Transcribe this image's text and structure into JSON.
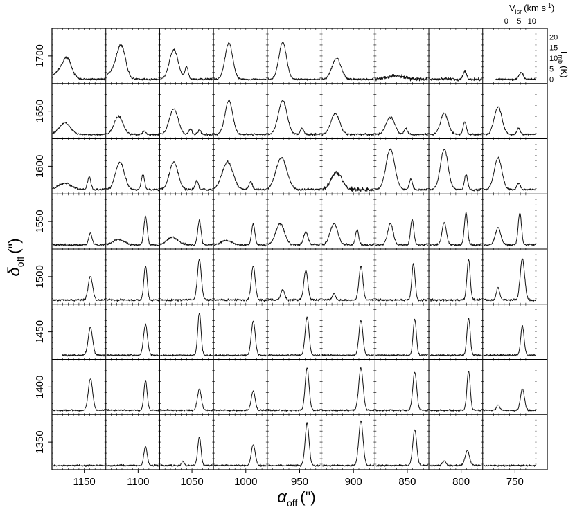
{
  "chart_data": {
    "type": "line",
    "layout": "spectral-map-grid",
    "xlabel": {
      "symbol": "α",
      "subscript": "off",
      "unit": "(\")"
    },
    "ylabel": {
      "symbol": "δ",
      "subscript": "off",
      "unit": "(\")"
    },
    "xlim": [
      1180,
      720
    ],
    "ylim": [
      1325,
      1725
    ],
    "step": 50,
    "x_ticks": [
      1150,
      1100,
      1050,
      1000,
      950,
      900,
      850,
      800,
      750
    ],
    "y_ticks": [
      1700,
      1650,
      1600,
      1550,
      1500,
      1450,
      1400,
      1350
    ],
    "velocity_axis": {
      "label": "V",
      "subscript": "lsr",
      "unit": "(km s",
      "unit_exp": "-1",
      "unit_close": ")",
      "range": [
        -5,
        16
      ],
      "ticks": [
        0,
        5,
        10
      ]
    },
    "temperature_axis": {
      "label": "T",
      "subscript": "mb",
      "unit": "(K)",
      "range": [
        -2,
        24
      ],
      "ticks": [
        0,
        5,
        10,
        15,
        20
      ]
    },
    "spectra": [
      {
        "delta": 1700,
        "alpha": 1155,
        "lines": [
          [
            1.0,
            8.5,
            4.0
          ],
          [
            -2.0,
            3.5,
            6.0
          ]
        ],
        "noise": 0.5
      },
      {
        "delta": 1700,
        "alpha": 1105,
        "lines": [
          [
            1.0,
            14.5,
            4.0
          ],
          [
            -2.0,
            3.5,
            6.0
          ]
        ],
        "noise": 0.5
      },
      {
        "delta": 1700,
        "alpha": 1055,
        "lines": [
          [
            0.5,
            14.0,
            4.0
          ],
          [
            5.5,
            6.0,
            1.5
          ]
        ],
        "noise": 0.5
      },
      {
        "delta": 1700,
        "alpha": 1005,
        "lines": [
          [
            1.0,
            17.0,
            3.5
          ]
        ],
        "noise": 0.4
      },
      {
        "delta": 1700,
        "alpha": 955,
        "lines": [
          [
            1.0,
            17.5,
            3.5
          ]
        ],
        "noise": 0.4
      },
      {
        "delta": 1700,
        "alpha": 905,
        "lines": [
          [
            1.0,
            10.0,
            4.0
          ]
        ],
        "noise": 0.5
      },
      {
        "delta": 1700,
        "alpha": 855,
        "lines": [
          [
            3.0,
            1.5,
            8.0
          ]
        ],
        "noise": 0.8
      },
      {
        "delta": 1700,
        "alpha": 805,
        "lines": [
          [
            9.0,
            4.0,
            1.5
          ]
        ],
        "noise": 0.7
      },
      {
        "delta": 1700,
        "alpha": 755,
        "lines": [
          [
            10.0,
            3.0,
            2.0
          ]
        ],
        "noise": 0.5,
        "start": 0.0
      },
      {
        "delta": 1650,
        "alpha": 1155,
        "lines": [
          [
            0.0,
            5.5,
            5.0
          ]
        ],
        "noise": 0.4
      },
      {
        "delta": 1650,
        "alpha": 1105,
        "lines": [
          [
            0.0,
            8.5,
            4.0
          ],
          [
            10.0,
            1.5,
            1.5
          ]
        ],
        "noise": 0.5
      },
      {
        "delta": 1650,
        "alpha": 1055,
        "lines": [
          [
            0.5,
            12.0,
            4.0
          ],
          [
            7.0,
            2.5,
            1.5
          ],
          [
            10.5,
            2.0,
            1.5
          ]
        ],
        "noise": 0.5
      },
      {
        "delta": 1650,
        "alpha": 1005,
        "lines": [
          [
            1.0,
            16.0,
            3.5
          ]
        ],
        "noise": 0.4
      },
      {
        "delta": 1650,
        "alpha": 955,
        "lines": [
          [
            1.0,
            16.0,
            4.0
          ],
          [
            8.5,
            3.0,
            1.5
          ]
        ],
        "noise": 0.5
      },
      {
        "delta": 1650,
        "alpha": 905,
        "lines": [
          [
            0.5,
            10.0,
            4.0
          ]
        ],
        "noise": 0.5
      },
      {
        "delta": 1650,
        "alpha": 855,
        "lines": [
          [
            1.0,
            8.0,
            4.0
          ],
          [
            7.0,
            3.0,
            1.5
          ]
        ],
        "noise": 0.5
      },
      {
        "delta": 1650,
        "alpha": 805,
        "lines": [
          [
            1.0,
            10.0,
            3.5
          ],
          [
            9.0,
            6.0,
            1.5
          ]
        ],
        "noise": 0.5
      },
      {
        "delta": 1650,
        "alpha": 755,
        "lines": [
          [
            1.0,
            13.0,
            3.5
          ],
          [
            9.0,
            3.0,
            1.5
          ]
        ],
        "noise": 0.5
      },
      {
        "delta": 1600,
        "alpha": 1155,
        "lines": [
          [
            0.0,
            3.0,
            6.0
          ],
          [
            9.5,
            6.0,
            1.5
          ]
        ],
        "noise": 0.5
      },
      {
        "delta": 1600,
        "alpha": 1105,
        "lines": [
          [
            0.5,
            13.0,
            4.0
          ],
          [
            9.5,
            7.0,
            1.5
          ]
        ],
        "noise": 0.5
      },
      {
        "delta": 1600,
        "alpha": 1055,
        "lines": [
          [
            0.5,
            13.0,
            4.0
          ],
          [
            9.5,
            4.0,
            1.5
          ]
        ],
        "noise": 0.5
      },
      {
        "delta": 1600,
        "alpha": 1005,
        "lines": [
          [
            0.5,
            13.0,
            5.0
          ],
          [
            9.5,
            4.0,
            1.5
          ]
        ],
        "noise": 0.5
      },
      {
        "delta": 1600,
        "alpha": 955,
        "lines": [
          [
            0.5,
            15.0,
            5.0
          ]
        ],
        "noise": 0.5
      },
      {
        "delta": 1600,
        "alpha": 905,
        "lines": [
          [
            1.0,
            8.0,
            5.0
          ]
        ],
        "noise": 1.0
      },
      {
        "delta": 1600,
        "alpha": 855,
        "lines": [
          [
            1.0,
            19.0,
            4.0
          ],
          [
            9.0,
            5.0,
            1.5
          ]
        ],
        "noise": 0.5
      },
      {
        "delta": 1600,
        "alpha": 805,
        "lines": [
          [
            1.0,
            19.0,
            3.5
          ],
          [
            9.5,
            7.0,
            1.5
          ]
        ],
        "noise": 0.5
      },
      {
        "delta": 1600,
        "alpha": 755,
        "lines": [
          [
            1.0,
            15.0,
            3.5
          ],
          [
            9.0,
            3.0,
            1.5
          ]
        ],
        "noise": 0.5
      },
      {
        "delta": 1550,
        "alpha": 1155,
        "lines": [
          [
            10.0,
            5.5,
            1.5
          ]
        ],
        "noise": 0.5
      },
      {
        "delta": 1550,
        "alpha": 1105,
        "lines": [
          [
            0.0,
            2.5,
            5.0
          ],
          [
            10.5,
            13.5,
            1.5
          ]
        ],
        "noise": 0.5
      },
      {
        "delta": 1550,
        "alpha": 1055,
        "lines": [
          [
            0.0,
            3.5,
            5.0
          ],
          [
            10.5,
            11.5,
            1.5
          ]
        ],
        "noise": 0.5
      },
      {
        "delta": 1550,
        "alpha": 1005,
        "lines": [
          [
            0.0,
            2.0,
            5.0
          ],
          [
            10.5,
            10.0,
            1.5
          ]
        ],
        "noise": 0.5
      },
      {
        "delta": 1550,
        "alpha": 955,
        "lines": [
          [
            0.0,
            10.0,
            4.0
          ],
          [
            10.0,
            6.0,
            2.0
          ]
        ],
        "noise": 0.5
      },
      {
        "delta": 1550,
        "alpha": 905,
        "lines": [
          [
            0.0,
            10.0,
            3.5
          ],
          [
            9.0,
            7.0,
            1.5
          ]
        ],
        "noise": 0.5
      },
      {
        "delta": 1550,
        "alpha": 855,
        "lines": [
          [
            1.0,
            10.0,
            2.5
          ],
          [
            9.5,
            12.0,
            1.5
          ]
        ],
        "noise": 0.5
      },
      {
        "delta": 1550,
        "alpha": 805,
        "lines": [
          [
            1.0,
            10.5,
            2.0
          ],
          [
            9.5,
            15.0,
            1.5
          ]
        ],
        "noise": 0.5
      },
      {
        "delta": 1550,
        "alpha": 755,
        "lines": [
          [
            1.0,
            8.0,
            2.5
          ],
          [
            9.5,
            15.0,
            1.5
          ]
        ],
        "noise": 0.5
      },
      {
        "delta": 1500,
        "alpha": 1155,
        "lines": [
          [
            10.0,
            11.0,
            2.0
          ]
        ],
        "noise": 0.5
      },
      {
        "delta": 1500,
        "alpha": 1105,
        "lines": [
          [
            10.5,
            16.0,
            1.5
          ]
        ],
        "noise": 0.5
      },
      {
        "delta": 1500,
        "alpha": 1055,
        "lines": [
          [
            10.5,
            19.0,
            1.8
          ]
        ],
        "noise": 0.5
      },
      {
        "delta": 1500,
        "alpha": 1005,
        "lines": [
          [
            10.5,
            16.0,
            1.8
          ]
        ],
        "noise": 0.5
      },
      {
        "delta": 1500,
        "alpha": 955,
        "lines": [
          [
            1.0,
            5.0,
            1.8
          ],
          [
            10.0,
            14.0,
            1.8
          ]
        ],
        "noise": 0.5
      },
      {
        "delta": 1500,
        "alpha": 905,
        "lines": [
          [
            0.0,
            3.0,
            1.5
          ],
          [
            10.5,
            16.0,
            1.8
          ]
        ],
        "noise": 0.5
      },
      {
        "delta": 1500,
        "alpha": 855,
        "lines": [
          [
            10.0,
            17.0,
            1.5
          ]
        ],
        "noise": 0.5
      },
      {
        "delta": 1500,
        "alpha": 805,
        "lines": [
          [
            10.5,
            19.0,
            1.5
          ]
        ],
        "noise": 0.5
      },
      {
        "delta": 1500,
        "alpha": 755,
        "lines": [
          [
            1.0,
            6.0,
            1.5
          ],
          [
            10.5,
            19.5,
            2.0
          ]
        ],
        "noise": 0.5
      },
      {
        "delta": 1450,
        "alpha": 1155,
        "lines": [
          [
            10.0,
            13.0,
            2.0
          ]
        ],
        "noise": 0.4,
        "start": -1.0
      },
      {
        "delta": 1450,
        "alpha": 1105,
        "lines": [
          [
            10.5,
            14.5,
            1.8
          ]
        ],
        "noise": 0.4
      },
      {
        "delta": 1450,
        "alpha": 1055,
        "lines": [
          [
            10.5,
            20.0,
            1.5
          ]
        ],
        "noise": 0.4
      },
      {
        "delta": 1450,
        "alpha": 1005,
        "lines": [
          [
            10.5,
            16.0,
            1.8
          ]
        ],
        "noise": 0.4
      },
      {
        "delta": 1450,
        "alpha": 955,
        "lines": [
          [
            10.5,
            18.0,
            1.8
          ]
        ],
        "noise": 0.4
      },
      {
        "delta": 1450,
        "alpha": 905,
        "lines": [
          [
            10.5,
            16.5,
            1.8
          ]
        ],
        "noise": 0.4
      },
      {
        "delta": 1450,
        "alpha": 855,
        "lines": [
          [
            10.5,
            17.0,
            1.5
          ]
        ],
        "noise": 0.4
      },
      {
        "delta": 1450,
        "alpha": 805,
        "lines": [
          [
            10.5,
            17.5,
            1.5
          ]
        ],
        "noise": 0.4
      },
      {
        "delta": 1450,
        "alpha": 755,
        "lines": [
          [
            10.5,
            14.0,
            1.5
          ]
        ],
        "noise": 0.4
      },
      {
        "delta": 1400,
        "alpha": 1155,
        "lines": [
          [
            10.0,
            15.0,
            2.0
          ]
        ],
        "noise": 0.4
      },
      {
        "delta": 1400,
        "alpha": 1105,
        "lines": [
          [
            10.5,
            14.0,
            1.5
          ]
        ],
        "noise": 0.4
      },
      {
        "delta": 1400,
        "alpha": 1055,
        "lines": [
          [
            10.5,
            10.0,
            1.8
          ]
        ],
        "noise": 0.4
      },
      {
        "delta": 1400,
        "alpha": 1005,
        "lines": [
          [
            10.5,
            9.0,
            1.8
          ]
        ],
        "noise": 0.4
      },
      {
        "delta": 1400,
        "alpha": 955,
        "lines": [
          [
            10.5,
            20.0,
            1.8
          ]
        ],
        "noise": 0.4
      },
      {
        "delta": 1400,
        "alpha": 905,
        "lines": [
          [
            10.5,
            20.0,
            2.0
          ]
        ],
        "noise": 0.4
      },
      {
        "delta": 1400,
        "alpha": 855,
        "lines": [
          [
            10.5,
            18.0,
            1.8
          ]
        ],
        "noise": 0.4
      },
      {
        "delta": 1400,
        "alpha": 805,
        "lines": [
          [
            10.5,
            18.5,
            1.5
          ]
        ],
        "noise": 0.4
      },
      {
        "delta": 1400,
        "alpha": 755,
        "lines": [
          [
            1.0,
            2.5,
            1.5
          ],
          [
            10.5,
            10.0,
            1.8
          ]
        ],
        "noise": 0.4
      },
      {
        "delta": 1350,
        "alpha": 1155,
        "lines": [],
        "noise": 0.4
      },
      {
        "delta": 1350,
        "alpha": 1105,
        "lines": [
          [
            10.5,
            9.0,
            1.5
          ]
        ],
        "noise": 0.4
      },
      {
        "delta": 1350,
        "alpha": 1055,
        "lines": [
          [
            4.0,
            2.0,
            1.2
          ],
          [
            10.5,
            13.5,
            1.5
          ]
        ],
        "noise": 0.4
      },
      {
        "delta": 1350,
        "alpha": 1005,
        "lines": [
          [
            10.5,
            10.0,
            1.8
          ]
        ],
        "noise": 0.4
      },
      {
        "delta": 1350,
        "alpha": 955,
        "lines": [
          [
            10.5,
            20.0,
            1.8
          ]
        ],
        "noise": 0.4
      },
      {
        "delta": 1350,
        "alpha": 905,
        "lines": [
          [
            10.5,
            21.0,
            2.0
          ]
        ],
        "noise": 0.4
      },
      {
        "delta": 1350,
        "alpha": 855,
        "lines": [
          [
            10.5,
            17.0,
            1.8
          ]
        ],
        "noise": 0.4
      },
      {
        "delta": 1350,
        "alpha": 805,
        "lines": [
          [
            1.0,
            2.0,
            1.5
          ],
          [
            10.0,
            7.0,
            2.0
          ]
        ],
        "noise": 0.4
      },
      {
        "delta": 1350,
        "alpha": 755,
        "lines": [],
        "noise": 0.4
      }
    ]
  }
}
